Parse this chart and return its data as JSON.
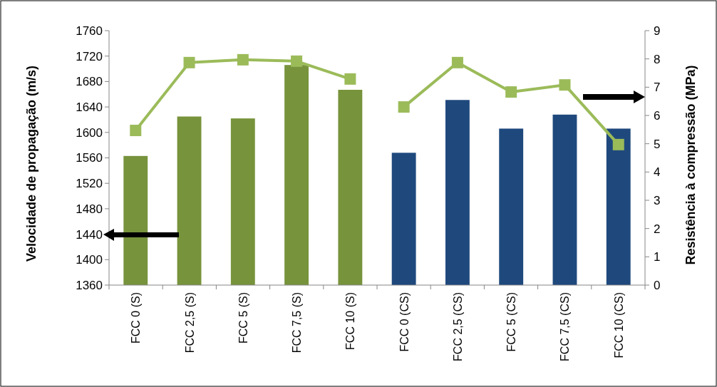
{
  "chart_data": {
    "type": "bar",
    "ylabel": "Velocidade de propagação (m/s)",
    "y2label": "Resistência à compressão (MPa)",
    "categories": [
      "FCC 0 (S)",
      "FCC 2,5 (S)",
      "FCC 5 (S)",
      "FCC 7,5 (S)",
      "FCC 10 (S)",
      "FCC 0 (CS)",
      "FCC 2,5 (CS)",
      "FCC 5 (CS)",
      "FCC 7,5 (CS)",
      "FCC 10 (CS)"
    ],
    "series": [
      {
        "colors": [
          "#77933c",
          "#77933c",
          "#77933c",
          "#77933c",
          "#77933c",
          "#1f497d",
          "#1f497d",
          "#1f497d",
          "#1f497d",
          "#1f497d"
        ],
        "values": [
          1563,
          1625,
          1622,
          1706,
          1667,
          1568,
          1651,
          1606,
          1628,
          1606
        ]
      },
      {
        "type": "line",
        "axis": "y2",
        "color": "#9bbb59",
        "values": [
          5.47,
          7.87,
          7.97,
          7.92,
          7.29,
          null,
          null,
          null,
          null,
          null
        ]
      },
      {
        "type": "line",
        "axis": "y2",
        "color": "#9bbb59",
        "values": [
          null,
          null,
          null,
          null,
          null,
          6.3,
          7.87,
          6.83,
          7.08,
          4.97
        ]
      }
    ],
    "ylim": [
      1360,
      1760
    ],
    "yticks": [
      1360,
      1400,
      1440,
      1480,
      1520,
      1560,
      1600,
      1640,
      1680,
      1720,
      1760
    ],
    "y2lim": [
      0,
      9
    ],
    "y2ticks": [
      0,
      1,
      2,
      3,
      4,
      5,
      6,
      7,
      8,
      9
    ],
    "marker": "square",
    "grid": false
  }
}
